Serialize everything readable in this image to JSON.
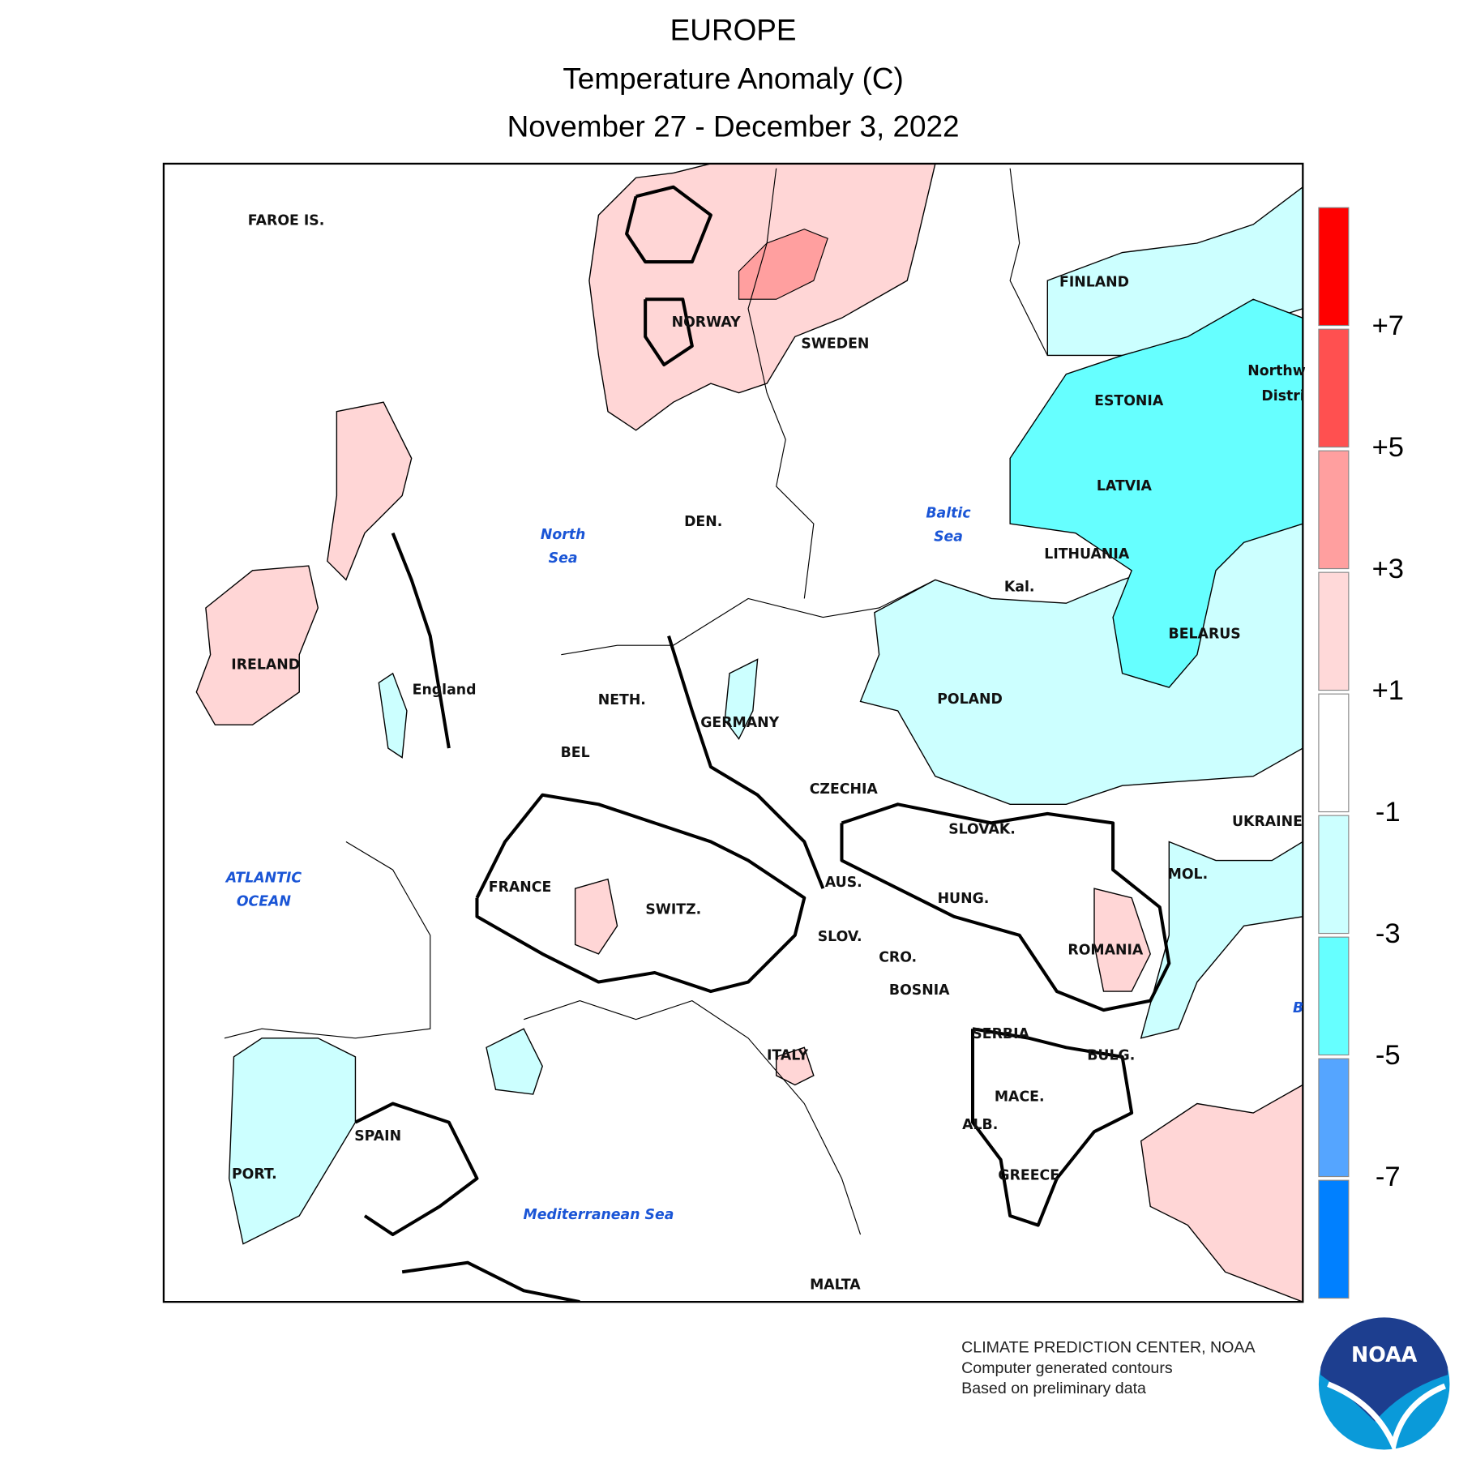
{
  "header": {
    "region": "EUROPE",
    "title": "Temperature Anomaly (C)",
    "period": "November 27 - December 3, 2022"
  },
  "places": [
    "FAROE IS.",
    "NORWAY",
    "SWEDEN",
    "FINLAND",
    "ESTONIA",
    "LATVIA",
    "LITHUANIA",
    "Kal.",
    "BELARUS",
    "POLAND",
    "DEN.",
    "IRELAND",
    "England",
    "NETH.",
    "GERMANY",
    "BEL",
    "CZECHIA",
    "SLOVAK.",
    "UKRAINE",
    "FRANCE",
    "AUS.",
    "MOL.",
    "HUNG.",
    "SWITZ.",
    "SLOV.",
    "CRO.",
    "ROMANIA",
    "BOSNIA",
    "SERBIA",
    "ITALY",
    "BULG.",
    "MACE.",
    "ALB.",
    "SPAIN",
    "PORT.",
    "GREECE",
    "MALTA",
    "Northw",
    "Distri"
  ],
  "waters": [
    [
      "North",
      "Sea"
    ],
    [
      "Baltic",
      "Sea"
    ],
    [
      "ATLANTIC",
      "OCEAN"
    ],
    [
      "Mediterranean Sea"
    ],
    [
      "B"
    ]
  ],
  "legend": {
    "labels": [
      "+7",
      "+5",
      "+3",
      "+1",
      "-1",
      "-3",
      "-5",
      "-7"
    ],
    "colors": [
      "#ff0000",
      "#ff5050",
      "#ff9f9f",
      "#ffd9d9",
      "#ffffff",
      "#ccffff",
      "#66ffff",
      "#55a5ff",
      "#0080ff"
    ]
  },
  "credits": [
    "CLIMATE PREDICTION CENTER, NOAA",
    "Computer generated contours",
    "Based on preliminary data"
  ],
  "logo": "NOAA"
}
